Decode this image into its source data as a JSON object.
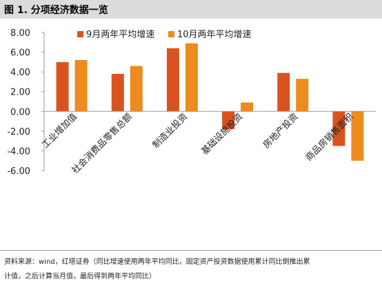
{
  "figure": {
    "title": "图 1. 分项经济数据一览"
  },
  "chart_data": {
    "type": "bar",
    "categories": [
      "工业增加值",
      "社会消费品零售总额",
      "制造业投资",
      "基础设施投资",
      "房地产投资",
      "商品房销售面积"
    ],
    "series": [
      {
        "name": "9月两年平均增速",
        "values": [
          5.0,
          3.8,
          6.4,
          -1.8,
          3.9,
          -3.5
        ],
        "color": "#d9531e"
      },
      {
        "name": "10月两年平均增速",
        "values": [
          5.2,
          4.6,
          6.9,
          0.9,
          3.3,
          -5.0
        ],
        "color": "#ed8b1c"
      }
    ],
    "ylim": [
      -6,
      8
    ],
    "yticks": [
      "8.00",
      "6.00",
      "4.00",
      "2.00",
      "0.00",
      "-2.00",
      "-4.00",
      "-6.00"
    ],
    "legend_position": "top",
    "grid": false
  },
  "source": {
    "line1": "资料来源：wind，红塔证券（同比增速使用两年平均同比，固定资产投资数据使用累计同比倒推出累",
    "line2": "计值，之后计算当月值，最后得到两年平均同比）"
  }
}
